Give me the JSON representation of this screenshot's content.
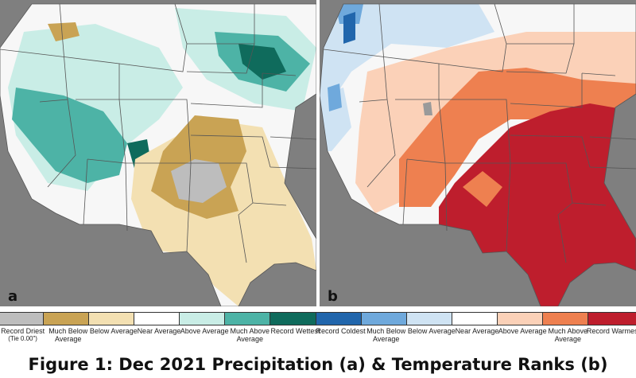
{
  "panels": [
    {
      "letter": "a",
      "name": "precipitation"
    },
    {
      "letter": "b",
      "name": "temperature"
    }
  ],
  "legend": [
    {
      "label": "Record Driest",
      "note": "(Tie 0.00\")",
      "color": "#bdbdbd"
    },
    {
      "label": "Much Below Average",
      "color": "#c9a354"
    },
    {
      "label": "Below Average",
      "color": "#f3e0b2"
    },
    {
      "label": "Near Average",
      "color": "#ffffff"
    },
    {
      "label": "Above Average",
      "color": "#c9ede6"
    },
    {
      "label": "Much Above Average",
      "color": "#4db3a6"
    },
    {
      "label": "Record Wettest",
      "color": "#0f6b5c"
    },
    {
      "label": "Record Coldest",
      "color": "#2166ac"
    },
    {
      "label": "Much Below Average",
      "color": "#6fa9dc"
    },
    {
      "label": "Below Average",
      "color": "#cfe3f3"
    },
    {
      "label": "Near Average",
      "color": "#ffffff"
    },
    {
      "label": "Above Average",
      "color": "#fbd1b8"
    },
    {
      "label": "Much Above Average",
      "color": "#ee8050"
    },
    {
      "label": "Record Warmest",
      "color": "#be1e2d"
    }
  ],
  "caption": "Figure 1: Dec 2021 Precipitation (a) & Temperature Ranks (b)",
  "colors": {
    "land_neutral": "#f4f4f4",
    "ocean_gray": "#7f7f7f",
    "state_line": "#555555"
  }
}
